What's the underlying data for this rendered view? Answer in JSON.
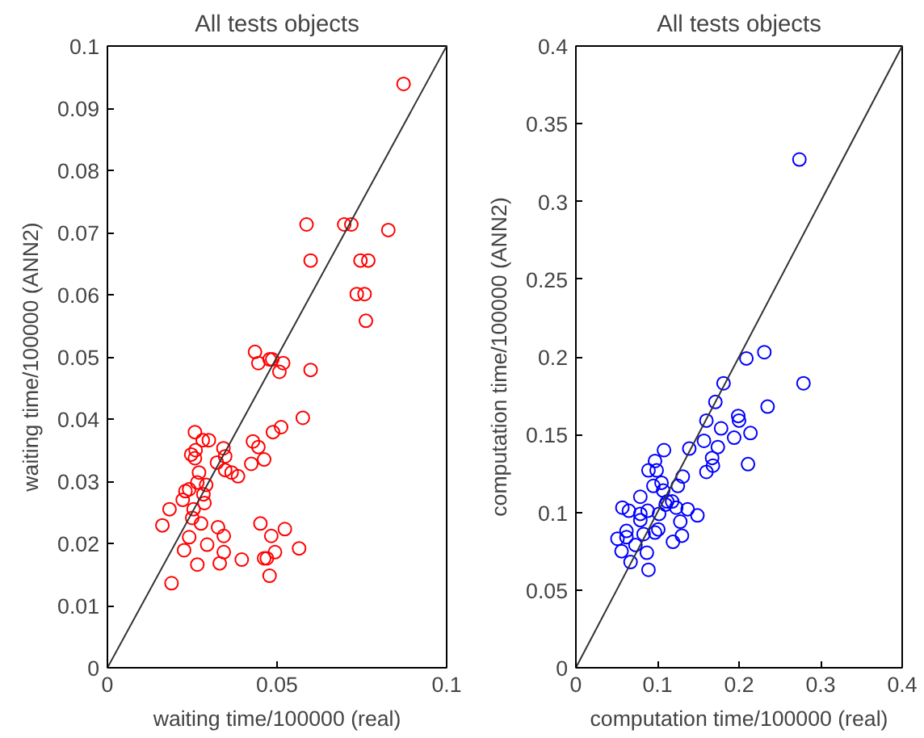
{
  "chart_data": [
    {
      "type": "scatter",
      "title": "All tests objects",
      "xlabel": "waiting time/100000 (real)",
      "ylabel": "waiting time/100000 (ANN2)",
      "xlim": [
        0,
        0.1
      ],
      "ylim": [
        0,
        0.1
      ],
      "xticks": [
        0,
        0.05,
        0.1
      ],
      "yticks": [
        0,
        0.01,
        0.02,
        0.03,
        0.04,
        0.05,
        0.06,
        0.07,
        0.08,
        0.09,
        0.1
      ],
      "grid": false,
      "series": [
        {
          "marker": "circle",
          "color": "#ff0000",
          "x": [
            0.0873,
            0.0587,
            0.0698,
            0.0719,
            0.0828,
            0.0599,
            0.0746,
            0.0769,
            0.0735,
            0.0758,
            0.0762,
            0.0435,
            0.0445,
            0.0478,
            0.0486,
            0.0518,
            0.0507,
            0.0599,
            0.0576,
            0.0512,
            0.0488,
            0.0258,
            0.0299,
            0.0281,
            0.0342,
            0.026,
            0.0247,
            0.0258,
            0.0347,
            0.0429,
            0.0445,
            0.0462,
            0.0424,
            0.0323,
            0.0347,
            0.0366,
            0.0385,
            0.027,
            0.0265,
            0.0291,
            0.023,
            0.0241,
            0.0222,
            0.0283,
            0.0286,
            0.0183,
            0.0254,
            0.025,
            0.0276,
            0.0162,
            0.0326,
            0.0451,
            0.0523,
            0.0241,
            0.0343,
            0.0483,
            0.0294,
            0.0226,
            0.0343,
            0.0494,
            0.0565,
            0.0396,
            0.0462,
            0.047,
            0.0265,
            0.0331,
            0.0478,
            0.0189
          ],
          "values": [
            0.0939,
            0.0713,
            0.0713,
            0.0713,
            0.0704,
            0.0655,
            0.0655,
            0.0655,
            0.0601,
            0.0601,
            0.0558,
            0.0508,
            0.049,
            0.0496,
            0.0496,
            0.049,
            0.0476,
            0.0479,
            0.0402,
            0.0387,
            0.0379,
            0.0379,
            0.0366,
            0.0366,
            0.0353,
            0.035,
            0.0343,
            0.0337,
            0.034,
            0.0364,
            0.0355,
            0.0335,
            0.0328,
            0.033,
            0.0318,
            0.0314,
            0.0308,
            0.0314,
            0.0298,
            0.0294,
            0.0284,
            0.0287,
            0.027,
            0.0279,
            0.0265,
            0.0255,
            0.0255,
            0.0241,
            0.0232,
            0.0229,
            0.0226,
            0.0232,
            0.0223,
            0.021,
            0.0212,
            0.0212,
            0.0198,
            0.0189,
            0.0186,
            0.0186,
            0.0192,
            0.0174,
            0.0176,
            0.0176,
            0.0166,
            0.0168,
            0.0148,
            0.0136
          ]
        },
        {
          "type": "line",
          "marker": "none",
          "color": "#333333",
          "x": [
            0,
            0.1
          ],
          "values": [
            0,
            0.1
          ]
        }
      ]
    },
    {
      "type": "scatter",
      "title": "All tests objects",
      "xlabel": "computation time/100000 (real)",
      "ylabel": "computation time/100000 (ANN2)",
      "xlim": [
        0,
        0.4
      ],
      "ylim": [
        0,
        0.4
      ],
      "xticks": [
        0,
        0.1,
        0.2,
        0.3,
        0.4
      ],
      "yticks": [
        0,
        0.05,
        0.1,
        0.15,
        0.2,
        0.25,
        0.3,
        0.35,
        0.4
      ],
      "grid": false,
      "series": [
        {
          "marker": "circle",
          "color": "#0000ff",
          "x": [
            0.274,
            0.209,
            0.231,
            0.279,
            0.181,
            0.171,
            0.16,
            0.178,
            0.199,
            0.2,
            0.235,
            0.194,
            0.214,
            0.157,
            0.139,
            0.174,
            0.167,
            0.168,
            0.16,
            0.211,
            0.108,
            0.097,
            0.089,
            0.099,
            0.131,
            0.095,
            0.105,
            0.125,
            0.107,
            0.079,
            0.112,
            0.118,
            0.11,
            0.123,
            0.137,
            0.149,
            0.057,
            0.065,
            0.088,
            0.079,
            0.102,
            0.079,
            0.128,
            0.101,
            0.097,
            0.062,
            0.083,
            0.062,
            0.051,
            0.13,
            0.119,
            0.073,
            0.056,
            0.087,
            0.067,
            0.089
          ],
          "values": [
            0.327,
            0.199,
            0.203,
            0.183,
            0.183,
            0.171,
            0.159,
            0.154,
            0.162,
            0.159,
            0.168,
            0.148,
            0.151,
            0.146,
            0.141,
            0.142,
            0.135,
            0.13,
            0.126,
            0.131,
            0.14,
            0.133,
            0.127,
            0.127,
            0.123,
            0.117,
            0.119,
            0.117,
            0.114,
            0.11,
            0.107,
            0.107,
            0.105,
            0.103,
            0.102,
            0.098,
            0.103,
            0.101,
            0.101,
            0.099,
            0.099,
            0.095,
            0.094,
            0.089,
            0.087,
            0.088,
            0.086,
            0.084,
            0.083,
            0.085,
            0.081,
            0.079,
            0.075,
            0.074,
            0.068,
            0.063
          ]
        },
        {
          "type": "line",
          "marker": "none",
          "color": "#333333",
          "x": [
            0,
            0.4
          ],
          "values": [
            0,
            0.4
          ]
        }
      ]
    }
  ]
}
